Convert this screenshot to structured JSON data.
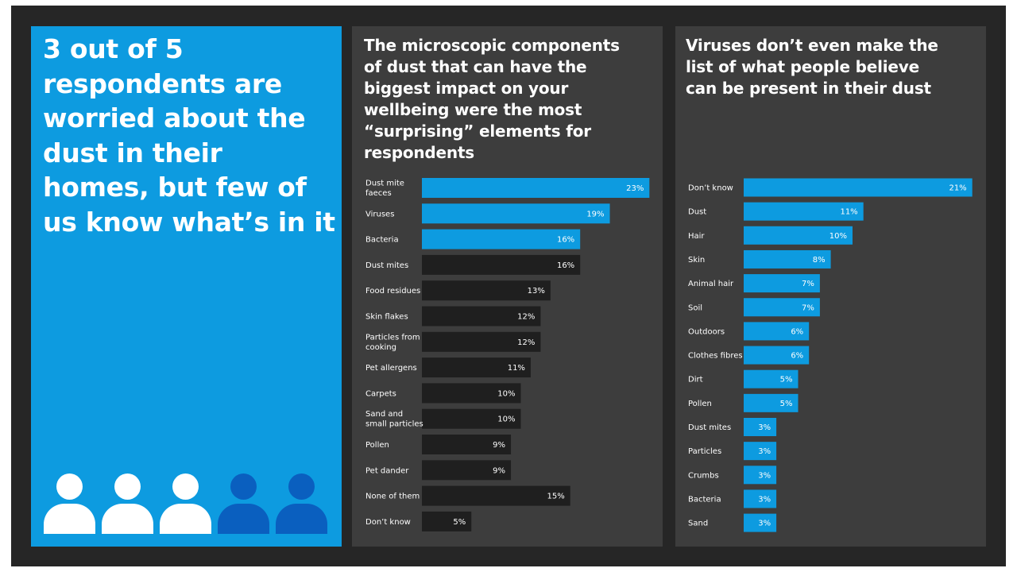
{
  "headline": "3 out of 5 respondents are worried about the dust in their homes, but few of us know what’s in it",
  "colors": {
    "blue": "#0d9be0",
    "dark_bar": "#1f1f1f",
    "person_light": "#ffffff",
    "person_dark": "#0a5fbf"
  },
  "people": [
    {
      "icon": "person-icon",
      "highlighted": true
    },
    {
      "icon": "person-icon",
      "highlighted": true
    },
    {
      "icon": "person-icon",
      "highlighted": true
    },
    {
      "icon": "person-icon",
      "highlighted": false
    },
    {
      "icon": "person-icon",
      "highlighted": false
    }
  ],
  "chart_data": [
    {
      "type": "bar",
      "orientation": "horizontal",
      "title": "The microscopic components of dust that can have the biggest impact on your wellbeing were the most “surprising” elements for respondents",
      "unit": "%",
      "categories": [
        "Dust mite faeces",
        "Viruses",
        "Bacteria",
        "Dust mites",
        "Food residues",
        "Skin flakes",
        "Particles from cooking",
        "Pet allergens",
        "Carpets",
        "Sand and small particles",
        "Pollen",
        "Pet dander",
        "None of them",
        "Don’t know"
      ],
      "label_lines": [
        [
          "Dust mite",
          "faeces"
        ],
        [
          "Viruses"
        ],
        [
          "Bacteria"
        ],
        [
          "Dust mites"
        ],
        [
          "Food residues"
        ],
        [
          "Skin flakes"
        ],
        [
          "Particles from",
          "cooking"
        ],
        [
          "Pet allergens"
        ],
        [
          "Carpets"
        ],
        [
          "Sand and",
          "small particles"
        ],
        [
          "Pollen"
        ],
        [
          "Pet dander"
        ],
        [
          "None of them"
        ],
        [
          "Don’t know"
        ]
      ],
      "values": [
        23,
        19,
        16,
        16,
        13,
        12,
        12,
        11,
        10,
        10,
        9,
        9,
        15,
        5
      ],
      "highlight": [
        true,
        true,
        true,
        false,
        false,
        false,
        false,
        false,
        false,
        false,
        false,
        false,
        false,
        false
      ]
    },
    {
      "type": "bar",
      "orientation": "horizontal",
      "title": "Viruses don’t even make the list of what people believe can be present in their dust",
      "unit": "%",
      "categories": [
        "Don’t know",
        "Dust",
        "Hair",
        "Skin",
        "Animal hair",
        "Soil",
        "Outdoors",
        "Clothes fibres",
        "Dirt",
        "Pollen",
        "Dust mites",
        "Particles",
        "Crumbs",
        "Bacteria",
        "Sand"
      ],
      "label_lines": [
        [
          "Don’t know"
        ],
        [
          "Dust"
        ],
        [
          "Hair"
        ],
        [
          "Skin"
        ],
        [
          "Animal hair"
        ],
        [
          "Soil"
        ],
        [
          "Outdoors"
        ],
        [
          "Clothes fibres"
        ],
        [
          "Dirt"
        ],
        [
          "Pollen"
        ],
        [
          "Dust mites"
        ],
        [
          "Particles"
        ],
        [
          "Crumbs"
        ],
        [
          "Bacteria"
        ],
        [
          "Sand"
        ]
      ],
      "values": [
        21,
        11,
        10,
        8,
        7,
        7,
        6,
        6,
        5,
        5,
        3,
        3,
        3,
        3,
        3
      ],
      "highlight": [
        true,
        true,
        true,
        true,
        true,
        true,
        true,
        true,
        true,
        true,
        true,
        true,
        true,
        true,
        true
      ]
    }
  ]
}
